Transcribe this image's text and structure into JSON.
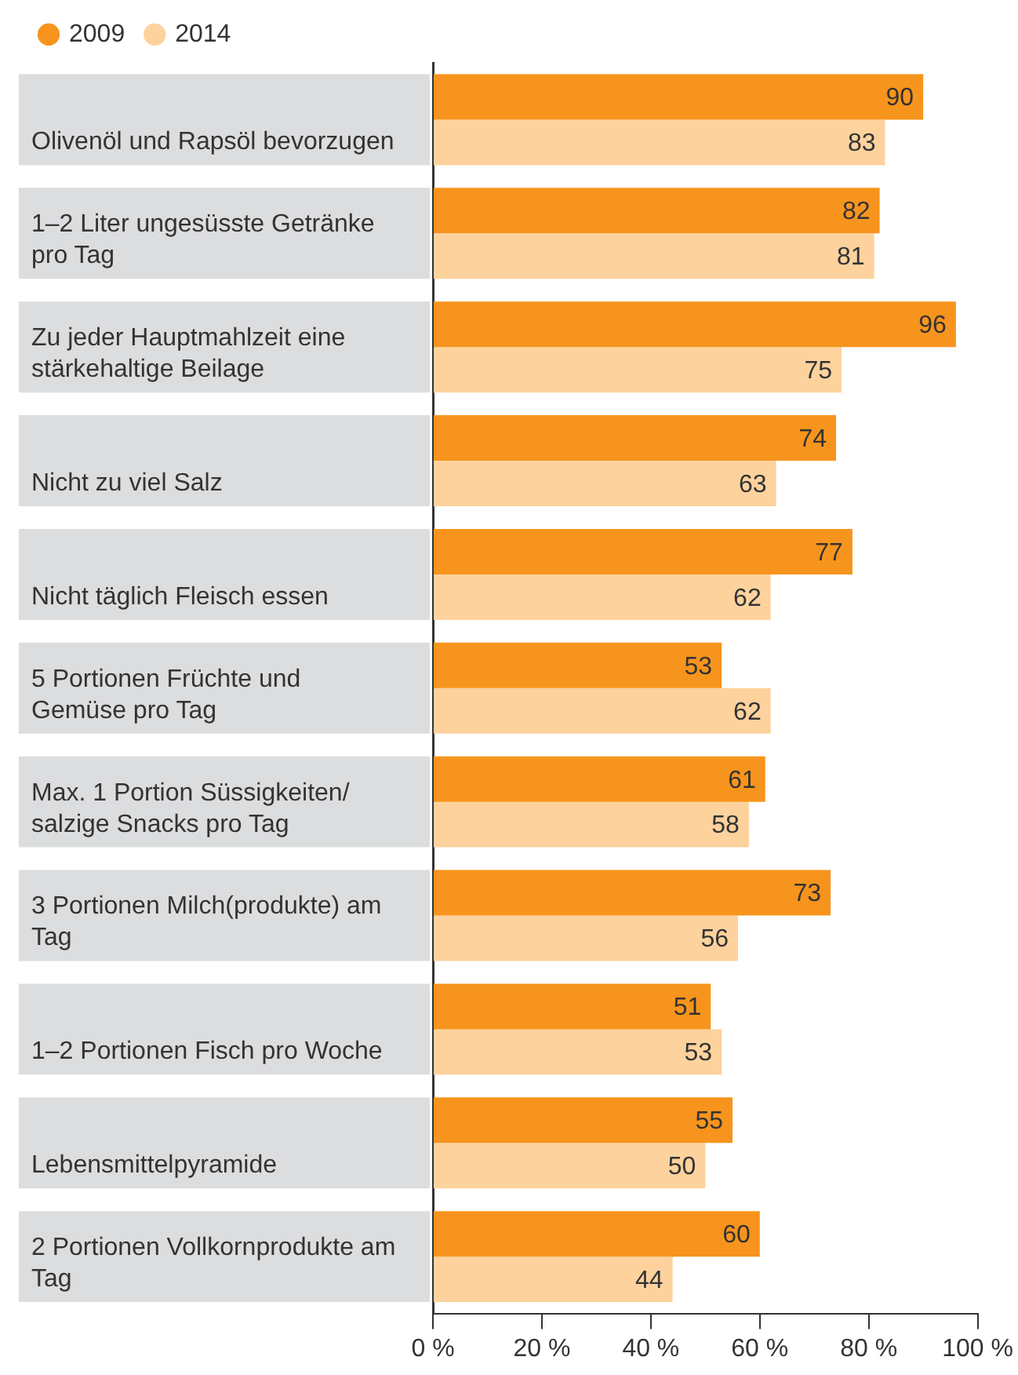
{
  "chart_data": {
    "type": "bar",
    "orientation": "horizontal",
    "categories": [
      "Olivenöl und Rapsöl bevorzugen",
      "1–2 Liter ungesüsste Getränke pro Tag",
      "Zu jeder Hauptmahlzeit eine stärkehaltige Beilage",
      "Nicht zu viel Salz",
      "Nicht täglich Fleisch essen",
      "5 Portionen Früchte und Gemüse pro Tag",
      "Max. 1 Portion Süssigkeiten/salzige Snacks pro Tag",
      "3 Portionen Milch(produkte) am Tag",
      "1–2 Portionen Fisch pro Woche",
      "Lebensmittelpyramide",
      "2 Portionen Vollkornprodukte am Tag"
    ],
    "series": [
      {
        "name": "2009",
        "color": "#f7941d",
        "values": [
          90,
          82,
          96,
          74,
          77,
          53,
          61,
          73,
          51,
          55,
          60
        ]
      },
      {
        "name": "2014",
        "color": "#fdd29d",
        "values": [
          83,
          81,
          75,
          63,
          62,
          62,
          58,
          56,
          53,
          50,
          44
        ]
      }
    ],
    "xlim": [
      0,
      100
    ],
    "xticks": [
      {
        "value": 0,
        "label": "0 %"
      },
      {
        "value": 20,
        "label": "20 %"
      },
      {
        "value": 40,
        "label": "40 %"
      },
      {
        "value": 60,
        "label": "60 %"
      },
      {
        "value": 80,
        "label": "80 %"
      },
      {
        "value": 100,
        "label": "100 %"
      }
    ],
    "data_labels": true,
    "legend": "top left",
    "grid": false
  }
}
